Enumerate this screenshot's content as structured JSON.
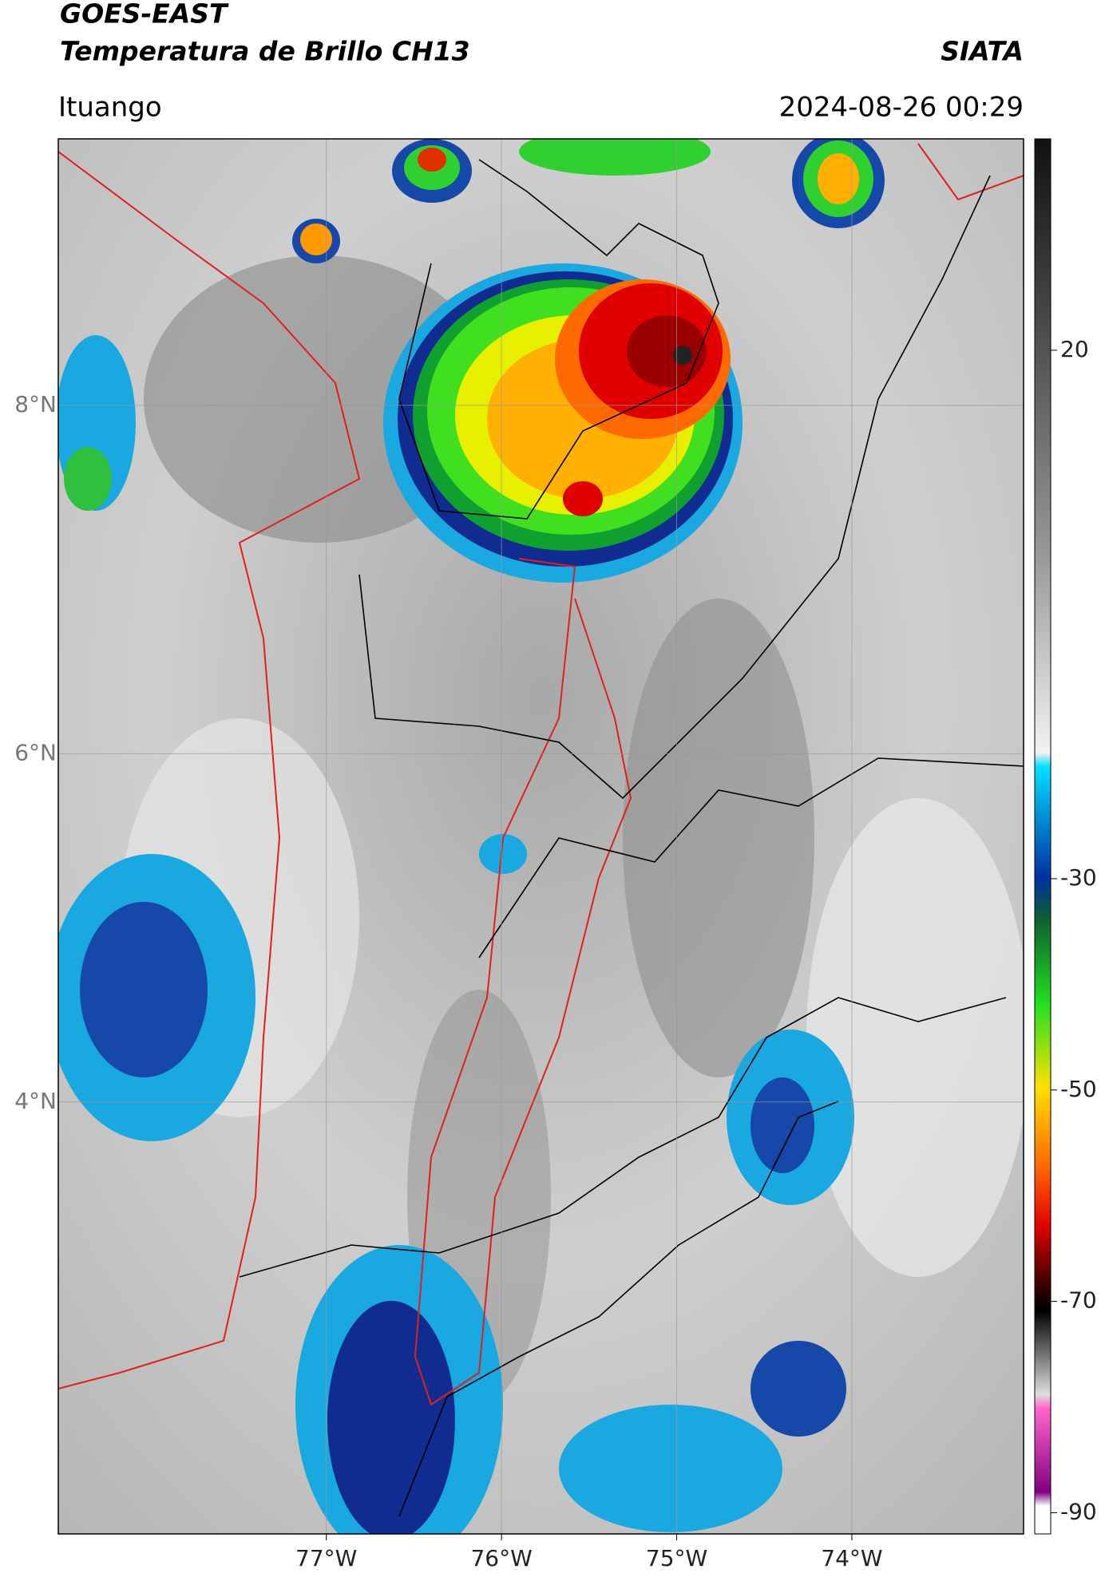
{
  "header": {
    "title": "GOES-EAST",
    "subtitle": "Temperatura de Brillo CH13",
    "brand": "SIATA",
    "location": "Ituango",
    "timestamp": "2024-08-26 00:29"
  },
  "map": {
    "xlim": [
      -78.53,
      -73.02
    ],
    "ylim": [
      1.52,
      9.53
    ],
    "xticks": [
      {
        "value": -77,
        "label": "77°W"
      },
      {
        "value": -76,
        "label": "76°W"
      },
      {
        "value": -75,
        "label": "75°W"
      },
      {
        "value": -74,
        "label": "74°W"
      }
    ],
    "yticks": [
      {
        "value": 4,
        "label": "4°N"
      },
      {
        "value": 6,
        "label": "6°N"
      },
      {
        "value": 8,
        "label": "8°N"
      }
    ],
    "grid": true
  },
  "colorbar": {
    "ylim": [
      -92,
      40
    ],
    "yticks": [
      -90,
      -70,
      -50,
      -30,
      20
    ]
  }
}
